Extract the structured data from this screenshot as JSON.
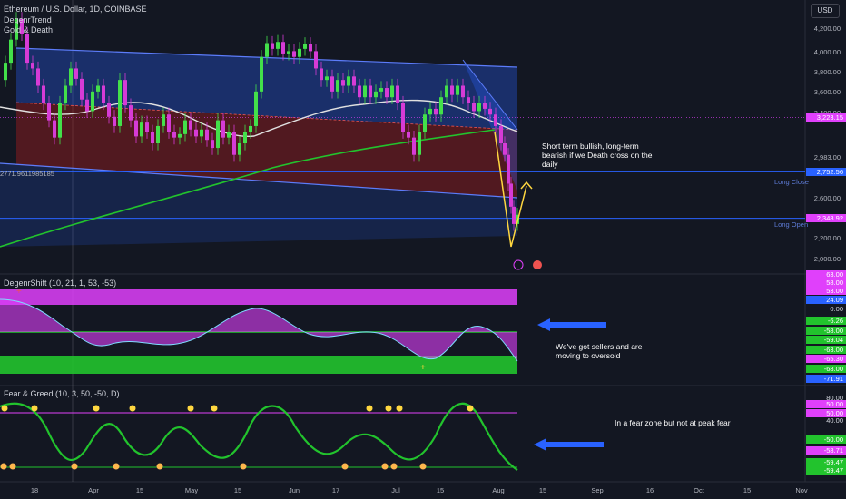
{
  "header": {
    "symbol_line": "Ethereum / U.S. Dollar, 1D, COINBASE",
    "indicator_1": "DegenrTrend",
    "indicator_2": "Gold & Death"
  },
  "currency_button": "USD",
  "colors": {
    "background": "#131722",
    "accent_blue": "#2962ff",
    "magenta": "#e040fb",
    "green": "#22c32d",
    "white_ma": "#e0e0e0",
    "yellow": "#ffd740"
  },
  "chart_data": [
    {
      "type": "candlestick",
      "title": "Ethereum / U.S. Dollar, 1D, COINBASE",
      "x_tick_labels": [
        "18",
        "Apr",
        "15",
        "May",
        "15",
        "Jun",
        "17",
        "Jul",
        "15",
        "Aug",
        "15",
        "Sep",
        "16",
        "Oct",
        "15",
        "Nov"
      ],
      "y_tick_labels": [
        "4,200.00",
        "4,000.00",
        "3,800.00",
        "3,600.00",
        "3,400.00",
        "2,983.00",
        "2,600.00",
        "2,400.00",
        "2,200.00",
        "2,000.00"
      ],
      "ylim": [
        1900,
        4300
      ],
      "close_path": [
        [
          0,
          3550
        ],
        [
          6,
          3700
        ],
        [
          12,
          3900
        ],
        [
          18,
          4080
        ],
        [
          24,
          3950
        ],
        [
          30,
          3700
        ],
        [
          36,
          3650
        ],
        [
          42,
          3500
        ],
        [
          48,
          3350
        ],
        [
          54,
          3200
        ],
        [
          60,
          3050
        ],
        [
          66,
          3350
        ],
        [
          72,
          3500
        ],
        [
          78,
          3650
        ],
        [
          84,
          3560
        ],
        [
          90,
          3380
        ],
        [
          96,
          3280
        ],
        [
          102,
          3450
        ],
        [
          108,
          3500
        ],
        [
          114,
          3350
        ],
        [
          120,
          3230
        ],
        [
          126,
          3150
        ],
        [
          132,
          3550
        ],
        [
          138,
          3330
        ],
        [
          144,
          3200
        ],
        [
          150,
          3060
        ],
        [
          156,
          3180
        ],
        [
          162,
          3100
        ],
        [
          168,
          3000
        ],
        [
          174,
          3150
        ],
        [
          180,
          3250
        ],
        [
          186,
          3100
        ],
        [
          192,
          3050
        ],
        [
          198,
          3080
        ],
        [
          204,
          3200
        ],
        [
          210,
          3120
        ],
        [
          216,
          3060
        ],
        [
          222,
          3120
        ],
        [
          228,
          3030
        ],
        [
          234,
          2960
        ],
        [
          240,
          3200
        ],
        [
          246,
          3050
        ],
        [
          252,
          3100
        ],
        [
          258,
          2900
        ],
        [
          264,
          3000
        ],
        [
          270,
          3100
        ],
        [
          276,
          3150
        ],
        [
          282,
          3450
        ],
        [
          288,
          3750
        ],
        [
          294,
          3870
        ],
        [
          300,
          3820
        ],
        [
          306,
          3880
        ],
        [
          312,
          3780
        ],
        [
          318,
          3800
        ],
        [
          324,
          3750
        ],
        [
          330,
          3820
        ],
        [
          336,
          3860
        ],
        [
          342,
          3800
        ],
        [
          348,
          3650
        ],
        [
          354,
          3550
        ],
        [
          360,
          3580
        ],
        [
          366,
          3450
        ],
        [
          372,
          3550
        ],
        [
          378,
          3500
        ],
        [
          384,
          3580
        ],
        [
          390,
          3500
        ],
        [
          396,
          3400
        ],
        [
          402,
          3500
        ],
        [
          408,
          3400
        ],
        [
          414,
          3450
        ],
        [
          420,
          3480
        ],
        [
          426,
          3400
        ],
        [
          432,
          3500
        ],
        [
          438,
          3350
        ],
        [
          444,
          3100
        ],
        [
          450,
          3050
        ],
        [
          456,
          2900
        ],
        [
          462,
          3100
        ],
        [
          468,
          3250
        ],
        [
          474,
          3300
        ],
        [
          480,
          3250
        ],
        [
          486,
          3400
        ],
        [
          492,
          3500
        ],
        [
          498,
          3420
        ],
        [
          504,
          3500
        ],
        [
          510,
          3400
        ],
        [
          516,
          3350
        ],
        [
          522,
          3280
        ],
        [
          528,
          3350
        ],
        [
          534,
          3300
        ],
        [
          540,
          3250
        ],
        [
          546,
          3150
        ],
        [
          552,
          3000
        ],
        [
          556,
          2900
        ],
        [
          560,
          2650
        ],
        [
          563,
          2450
        ],
        [
          566,
          2300
        ],
        [
          570,
          2380
        ]
      ],
      "series": [
        {
          "name": "DegenrTrend",
          "type": "area"
        },
        {
          "name": "Gold & Death",
          "type": "line"
        }
      ],
      "horizontal_lines": [
        {
          "label": "Long Close",
          "value": 2752.56
        },
        {
          "label": "Long Open",
          "value": 2348.92
        }
      ],
      "price_labels": [
        {
          "text": "3,223.15",
          "value": 3223.15,
          "color": "#e040fb"
        },
        {
          "text": "2,752.56",
          "value": 2752.56,
          "color": "#2962ff"
        },
        {
          "text": "2,348.92",
          "value": 2348.92,
          "color": "#e040fb"
        }
      ],
      "left_label": "2771.9611985185",
      "annotation": "Short term bullish, long-term bearish if we Death cross on the daily"
    },
    {
      "type": "area",
      "title": "DegenrShift (10, 21, 1, 53, -53)",
      "value_labels": [
        {
          "text": "63.00",
          "color": "#e040fb"
        },
        {
          "text": "58.00",
          "color": "#e040fb"
        },
        {
          "text": "53.00",
          "color": "#e040fb"
        },
        {
          "text": "24.09",
          "color": "#2962ff"
        },
        {
          "text": "0.00",
          "color": "none"
        },
        {
          "text": "-6.26",
          "color": "#22c32d"
        },
        {
          "text": "-58.00",
          "color": "#22c32d"
        },
        {
          "text": "-59.04",
          "color": "#22c32d"
        },
        {
          "text": "-63.00",
          "color": "#22c32d"
        },
        {
          "text": "-65.30",
          "color": "#e040fb"
        },
        {
          "text": "-68.00",
          "color": "#22c32d"
        },
        {
          "text": "-71.91",
          "color": "#2962ff"
        }
      ],
      "annotation": "We've got sellers and are moving to oversold"
    },
    {
      "type": "line",
      "title": "Fear & Greed (10, 3, 50, -50, D)",
      "value_labels": [
        {
          "text": "80.00",
          "color": "none"
        },
        {
          "text": "50.00",
          "color": "#e040fb"
        },
        {
          "text": "50.00",
          "color": "#e040fb"
        },
        {
          "text": "40.00",
          "color": "none"
        },
        {
          "text": "-50.00",
          "color": "#22c32d"
        },
        {
          "text": "-58.71",
          "color": "#e040fb"
        },
        {
          "text": "-59.47",
          "color": "#22c32d"
        },
        {
          "text": "-59.47",
          "color": "#22c32d"
        }
      ],
      "annotation": "In a fear zone but not at peak fear"
    }
  ]
}
